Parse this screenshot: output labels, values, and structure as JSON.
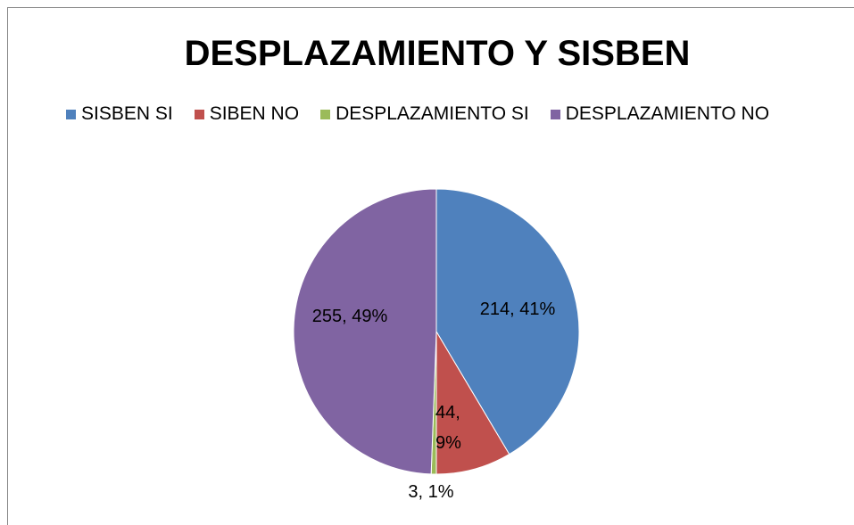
{
  "chart_data": {
    "type": "pie",
    "title": "DESPLAZAMIENTO Y SISBEN",
    "categories": [
      "SISBEN SI",
      "SIBEN NO",
      "DESPLAZAMIENTO SI",
      "DESPLAZAMIENTO NO"
    ],
    "values": [
      214,
      44,
      3,
      255
    ],
    "value_labels": [
      "214, 41%",
      "44, 9%",
      "3, 1%",
      "255, 49%"
    ],
    "colors": [
      "#4f81bd",
      "#c0504d",
      "#9bbb59",
      "#8064a2"
    ],
    "legend": "top"
  }
}
